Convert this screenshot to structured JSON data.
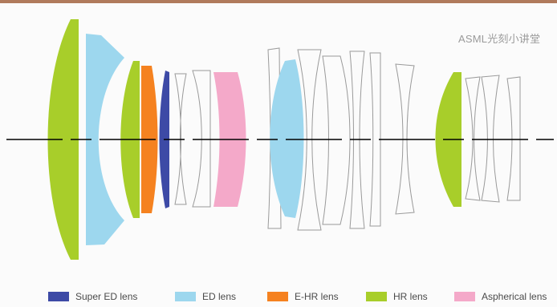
{
  "watermark": "ASML光刻小讲堂",
  "legend": [
    {
      "label": "Super ED lens",
      "color": "#3d4aa6"
    },
    {
      "label": "ED lens",
      "color": "#9dd7ee"
    },
    {
      "label": "E-HR lens",
      "color": "#f58220"
    },
    {
      "label": "HR lens",
      "color": "#a8ce2a"
    },
    {
      "label": "Aspherical lens",
      "color": "#f4a9c9"
    }
  ],
  "colors": {
    "outline": "#9a9a9a",
    "axis": "#000000",
    "top_bar": "#b07a5c"
  }
}
